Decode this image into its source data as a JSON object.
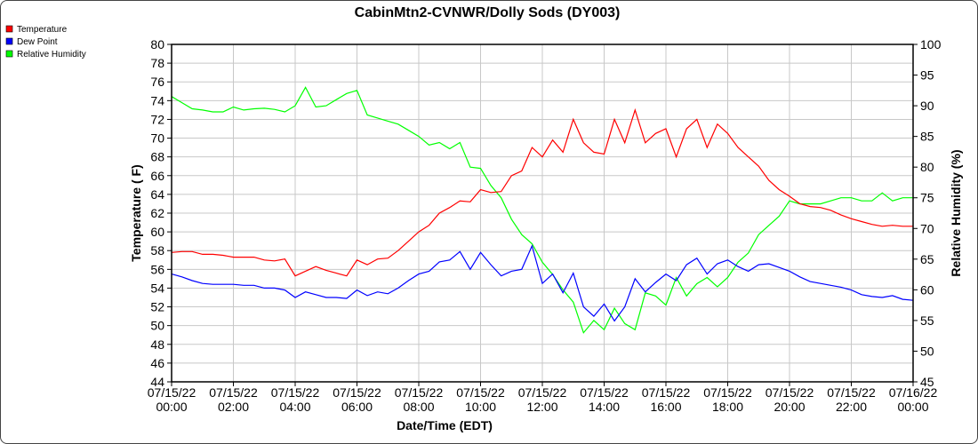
{
  "chart_data": {
    "type": "line",
    "title": "CabinMtn2-CVNWR/Dolly Sods (DY003)",
    "xlabel": "Date/Time (EDT)",
    "ylabel": "Temperature ( F)",
    "y2label": "Relative Humidity (%)",
    "ylim": [
      44,
      80
    ],
    "y2lim": [
      45,
      100
    ],
    "xlim_hours": [
      0,
      24
    ],
    "grid": true,
    "legend_position": "top-left",
    "x_tick_labels": [
      [
        "07/15/22",
        "00:00"
      ],
      [
        "07/15/22",
        "02:00"
      ],
      [
        "07/15/22",
        "04:00"
      ],
      [
        "07/15/22",
        "06:00"
      ],
      [
        "07/15/22",
        "08:00"
      ],
      [
        "07/15/22",
        "10:00"
      ],
      [
        "07/15/22",
        "12:00"
      ],
      [
        "07/15/22",
        "14:00"
      ],
      [
        "07/15/22",
        "16:00"
      ],
      [
        "07/15/22",
        "18:00"
      ],
      [
        "07/15/22",
        "20:00"
      ],
      [
        "07/15/22",
        "22:00"
      ],
      [
        "07/16/22",
        "00:00"
      ]
    ],
    "y_tick_labels": [
      "44",
      "46",
      "48",
      "50",
      "52",
      "54",
      "56",
      "58",
      "60",
      "62",
      "64",
      "66",
      "68",
      "70",
      "72",
      "74",
      "76",
      "78",
      "80"
    ],
    "y2_tick_labels": [
      "45",
      "50",
      "55",
      "60",
      "65",
      "70",
      "75",
      "80",
      "85",
      "90",
      "95",
      "100"
    ],
    "x_step_minutes": 20,
    "series": [
      {
        "name": "Temperature",
        "color": "#ff0000",
        "axis": "left",
        "values": [
          57.8,
          57.9,
          57.9,
          57.6,
          57.6,
          57.5,
          57.3,
          57.3,
          57.3,
          57.0,
          56.9,
          57.1,
          55.3,
          55.8,
          56.3,
          55.9,
          55.6,
          55.3,
          57.0,
          56.5,
          57.1,
          57.2,
          58.0,
          59.0,
          60.0,
          60.7,
          62.0,
          62.6,
          63.3,
          63.2,
          64.5,
          64.2,
          64.3,
          66.0,
          66.5,
          69.0,
          68.0,
          69.8,
          68.5,
          72.0,
          69.5,
          68.5,
          68.3,
          72.0,
          69.5,
          73.0,
          69.5,
          70.5,
          71.0,
          68.0,
          71.0,
          72.0,
          69.0,
          71.5,
          70.5,
          69.0,
          68.0,
          67.0,
          65.5,
          64.5,
          63.8,
          63.0,
          62.7,
          62.6,
          62.3,
          61.8,
          61.4,
          61.1,
          60.8,
          60.6,
          60.7,
          60.6,
          60.6
        ]
      },
      {
        "name": "Dew Point",
        "color": "#0000ff",
        "axis": "left",
        "values": [
          55.5,
          55.2,
          54.8,
          54.5,
          54.4,
          54.4,
          54.4,
          54.3,
          54.3,
          54.0,
          54.0,
          53.8,
          53.0,
          53.6,
          53.3,
          53.0,
          53.0,
          52.9,
          53.8,
          53.2,
          53.6,
          53.4,
          54.0,
          54.8,
          55.5,
          55.8,
          56.8,
          57.0,
          57.9,
          56.0,
          57.8,
          56.5,
          55.3,
          55.8,
          56.0,
          58.5,
          54.5,
          55.5,
          53.5,
          55.6,
          52.0,
          51.0,
          52.3,
          50.5,
          52.0,
          55.0,
          53.6,
          54.6,
          55.5,
          54.8,
          56.5,
          57.2,
          55.5,
          56.6,
          57.0,
          56.3,
          55.8,
          56.5,
          56.6,
          56.2,
          55.8,
          55.2,
          54.7,
          54.5,
          54.3,
          54.1,
          53.8,
          53.3,
          53.1,
          53.0,
          53.2,
          52.8,
          52.7
        ]
      },
      {
        "name": "Relative Humidity",
        "color": "#00ff00",
        "axis": "right",
        "values": [
          91.5,
          90.5,
          89.5,
          89.3,
          89.0,
          89.0,
          89.8,
          89.3,
          89.5,
          89.6,
          89.4,
          89.0,
          90.0,
          93.0,
          89.8,
          90.0,
          91.0,
          92.0,
          92.5,
          88.5,
          88.0,
          87.5,
          87.0,
          86.0,
          85.0,
          83.6,
          84.0,
          83.0,
          84.0,
          80.0,
          79.8,
          77.0,
          75.0,
          71.5,
          69.0,
          67.5,
          64.5,
          62.5,
          60.0,
          58.0,
          53.0,
          55.0,
          53.5,
          57.0,
          54.5,
          53.5,
          59.5,
          59.0,
          57.5,
          62.0,
          59.0,
          61.0,
          62.0,
          60.5,
          62.0,
          64.5,
          66.0,
          69.0,
          70.5,
          72.0,
          74.5,
          74.0,
          74.0,
          74.0,
          74.5,
          75.0,
          75.0,
          74.5,
          74.5,
          75.8,
          74.5,
          75.0,
          75.0
        ]
      }
    ]
  }
}
